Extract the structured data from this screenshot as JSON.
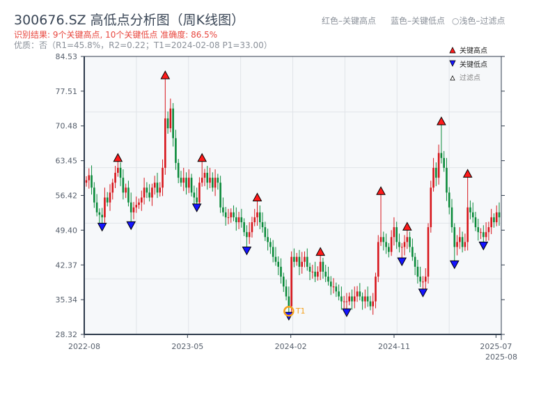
{
  "header": {
    "title": "300676.SZ 高低点分析图（周K线图）",
    "result": "识别结果: 9个关键高点, 10个关键低点   准确度: 86.5%",
    "quality": "优质：否（R1=45.8%，R2=0.22；T1=2024-02-08 P1=33.00）",
    "legend_red": "红色–关键高点",
    "legend_blue": "蓝色–关键低点",
    "legend_light": "○浅色–过滤点"
  },
  "colors": {
    "up": "#d7141a",
    "down": "#0a8a3a",
    "high_marker": "#ff1a1a",
    "low_marker": "#1414ff",
    "t1": "#f5a01a"
  },
  "chart_data": {
    "type": "candlestick",
    "title": "300676.SZ 高低点分析图（周K线图）",
    "ylim": [
      28.32,
      84.53
    ],
    "y_ticks": [
      "28.32",
      "35.34",
      "42.37",
      "49.40",
      "56.42",
      "63.45",
      "70.48",
      "77.51",
      "84.53"
    ],
    "x_ticks": [
      {
        "label": "2022-08",
        "index": 0
      },
      {
        "label": "2023-05",
        "index": 39
      },
      {
        "label": "2024-02",
        "index": 78
      },
      {
        "label": "2024-11",
        "index": 117
      },
      {
        "label": "2025-07",
        "index": 155.5
      },
      {
        "label": "2025-08",
        "index": 157.5
      }
    ],
    "closes": [
      59.5,
      60.5,
      58,
      55,
      53,
      52.5,
      52,
      56,
      55,
      57,
      59,
      61,
      62,
      60,
      57,
      58,
      55,
      53,
      54,
      54.5,
      55,
      56,
      58,
      57,
      56,
      58,
      59,
      57,
      58,
      62,
      72,
      70,
      74,
      68,
      63,
      60,
      59,
      60,
      58,
      60,
      57,
      56,
      55,
      59,
      60,
      61,
      59,
      60,
      58,
      60,
      59,
      54,
      53,
      52,
      52,
      53,
      52,
      51,
      52,
      51,
      49,
      48,
      49,
      51,
      52,
      53,
      51,
      50,
      48,
      47,
      46,
      44,
      43,
      42,
      40,
      38,
      36,
      34,
      44,
      43,
      44,
      42,
      43,
      44,
      42,
      41,
      41,
      40,
      41,
      43,
      41,
      40,
      39,
      38,
      38,
      37,
      36,
      35,
      35,
      35,
      36,
      35,
      36,
      37,
      36,
      35,
      36,
      35,
      34,
      35,
      40,
      47,
      48,
      47,
      46,
      45,
      48,
      50,
      47,
      46,
      46,
      47,
      48,
      46,
      44,
      42,
      40,
      39,
      39,
      40,
      50,
      58,
      62,
      60,
      65,
      64,
      62,
      57,
      54,
      50,
      46,
      47,
      48,
      46,
      47,
      54,
      53,
      52,
      50,
      49,
      49,
      48,
      49,
      50,
      52,
      51,
      53,
      52
    ],
    "key_highs": [
      {
        "index": 12,
        "price": 63.3
      },
      {
        "index": 30,
        "price": 80.0
      },
      {
        "index": 44,
        "price": 63.3
      },
      {
        "index": 65,
        "price": 55.3
      },
      {
        "index": 89,
        "price": 44.3
      },
      {
        "index": 112,
        "price": 56.6
      },
      {
        "index": 122,
        "price": 49.4
      },
      {
        "index": 135,
        "price": 70.7
      },
      {
        "index": 145,
        "price": 60.1
      }
    ],
    "key_lows": [
      {
        "index": 6,
        "price": 50.8
      },
      {
        "index": 17,
        "price": 51.1
      },
      {
        "index": 42,
        "price": 54.7
      },
      {
        "index": 61,
        "price": 46.0
      },
      {
        "index": 77,
        "price": 32.8
      },
      {
        "index": 99,
        "price": 33.5
      },
      {
        "index": 120,
        "price": 43.8
      },
      {
        "index": 128,
        "price": 37.5
      },
      {
        "index": 140,
        "price": 43.2
      },
      {
        "index": 151,
        "price": 47.0
      }
    ],
    "t1": {
      "label": "T1",
      "index": 77,
      "price": 33.0
    },
    "legend": {
      "high": "关键高点",
      "low": "关键低点",
      "filtered": "过滤点",
      "placement": "top-right"
    }
  }
}
